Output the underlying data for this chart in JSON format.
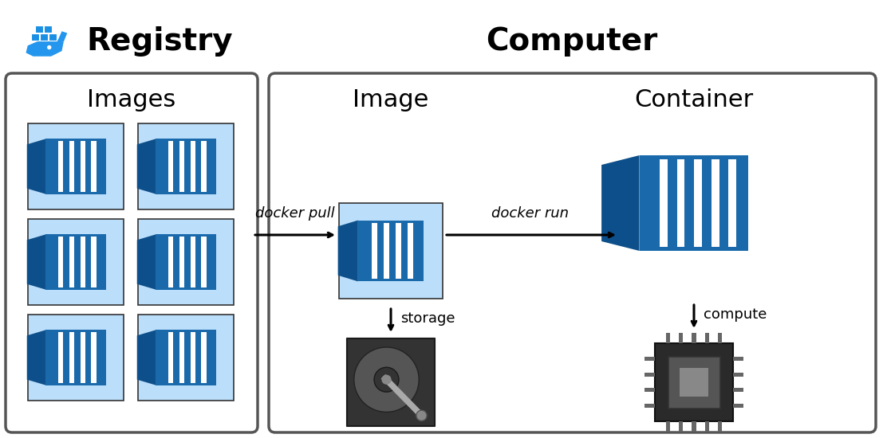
{
  "bg_color": "#ffffff",
  "registry_label": "Registry",
  "computer_label": "Computer",
  "images_label": "Images",
  "image_label": "Image",
  "container_label": "Container",
  "docker_pull_label": "docker pull",
  "docker_run_label": "docker run",
  "storage_label": "storage",
  "compute_label": "compute",
  "container_blue_dark": "#1a6aab",
  "container_blue_mid": "#1e7ec8",
  "container_blue_light": "#bbdefb",
  "container_blue_side": "#0d4f8a",
  "border_color": "#555555",
  "title_fontsize": 28,
  "label_fontsize": 22,
  "annot_fontsize": 13,
  "docker_blue": "#2496ed"
}
